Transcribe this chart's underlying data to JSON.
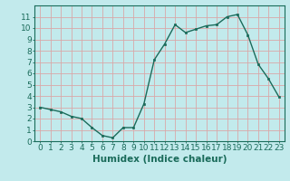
{
  "x": [
    0,
    1,
    2,
    3,
    4,
    5,
    6,
    7,
    8,
    9,
    10,
    11,
    12,
    13,
    14,
    15,
    16,
    17,
    18,
    19,
    20,
    21,
    22,
    23
  ],
  "y": [
    3.0,
    2.8,
    2.6,
    2.2,
    2.0,
    1.2,
    0.5,
    0.3,
    1.2,
    1.2,
    3.3,
    7.2,
    8.6,
    10.3,
    9.6,
    9.9,
    10.2,
    10.3,
    11.0,
    11.2,
    9.4,
    6.8,
    5.5,
    3.9
  ],
  "line_color": "#1a6b5a",
  "marker": "s",
  "marker_size": 2.0,
  "bg_color": "#c2eaec",
  "grid_color": "#d9a8a8",
  "xlabel": "Humidex (Indice chaleur)",
  "xlabel_fontsize": 7.5,
  "ylabel_values": [
    0,
    1,
    2,
    3,
    4,
    5,
    6,
    7,
    8,
    9,
    10,
    11
  ],
  "xlim": [
    -0.5,
    23.5
  ],
  "ylim": [
    0,
    12.0
  ],
  "tick_fontsize": 6.5,
  "line_width": 1.0
}
